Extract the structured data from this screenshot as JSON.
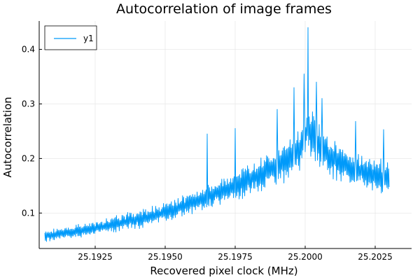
{
  "chart_data": {
    "type": "line",
    "title": "Autocorrelation of image frames",
    "xlabel": "Recovered pixel clock (MHz)",
    "ylabel": "Autocorrelation",
    "xlim": [
      25.1905,
      25.2038
    ],
    "ylim": [
      0.035,
      0.452
    ],
    "xticks": [
      {
        "value": 25.1925,
        "label": "25.1925"
      },
      {
        "value": 25.195,
        "label": "25.1950"
      },
      {
        "value": 25.1975,
        "label": "25.1975"
      },
      {
        "value": 25.2,
        "label": "25.2000"
      },
      {
        "value": 25.2025,
        "label": "25.2025"
      }
    ],
    "yticks": [
      {
        "value": 0.1,
        "label": "0.1"
      },
      {
        "value": 0.2,
        "label": "0.2"
      },
      {
        "value": 0.3,
        "label": "0.3"
      },
      {
        "value": 0.4,
        "label": "0.4"
      }
    ],
    "grid": true,
    "legend": {
      "position": "top-left"
    },
    "series": [
      {
        "name": "y1",
        "color": "#009AFA",
        "x_start": 25.1907,
        "x_end": 25.203,
        "n_points": 616,
        "seed": 7,
        "noise_amplitude_at_min": 0.01,
        "noise_amplitude_at_max": 0.045,
        "envelope": [
          [
            25.1907,
            0.058
          ],
          [
            25.1925,
            0.072
          ],
          [
            25.195,
            0.1
          ],
          [
            25.1975,
            0.15
          ],
          [
            25.199,
            0.185
          ],
          [
            25.1998,
            0.215
          ],
          [
            25.2001,
            0.255
          ],
          [
            25.2006,
            0.215
          ],
          [
            25.2015,
            0.185
          ],
          [
            25.203,
            0.16
          ]
        ],
        "spikes": [
          {
            "x": 25.2001,
            "y": 0.44
          },
          {
            "x": 25.19995,
            "y": 0.355
          },
          {
            "x": 25.2004,
            "y": 0.34
          },
          {
            "x": 25.1996,
            "y": 0.33
          },
          {
            "x": 25.1965,
            "y": 0.245
          },
          {
            "x": 25.1975,
            "y": 0.255
          },
          {
            "x": 25.2018,
            "y": 0.268
          },
          {
            "x": 25.2028,
            "y": 0.253
          },
          {
            "x": 25.199,
            "y": 0.29
          },
          {
            "x": 25.2006,
            "y": 0.31
          }
        ]
      }
    ]
  },
  "colors": {
    "axis": "#000000",
    "grid": "#e8e8e8",
    "background": "#ffffff"
  }
}
